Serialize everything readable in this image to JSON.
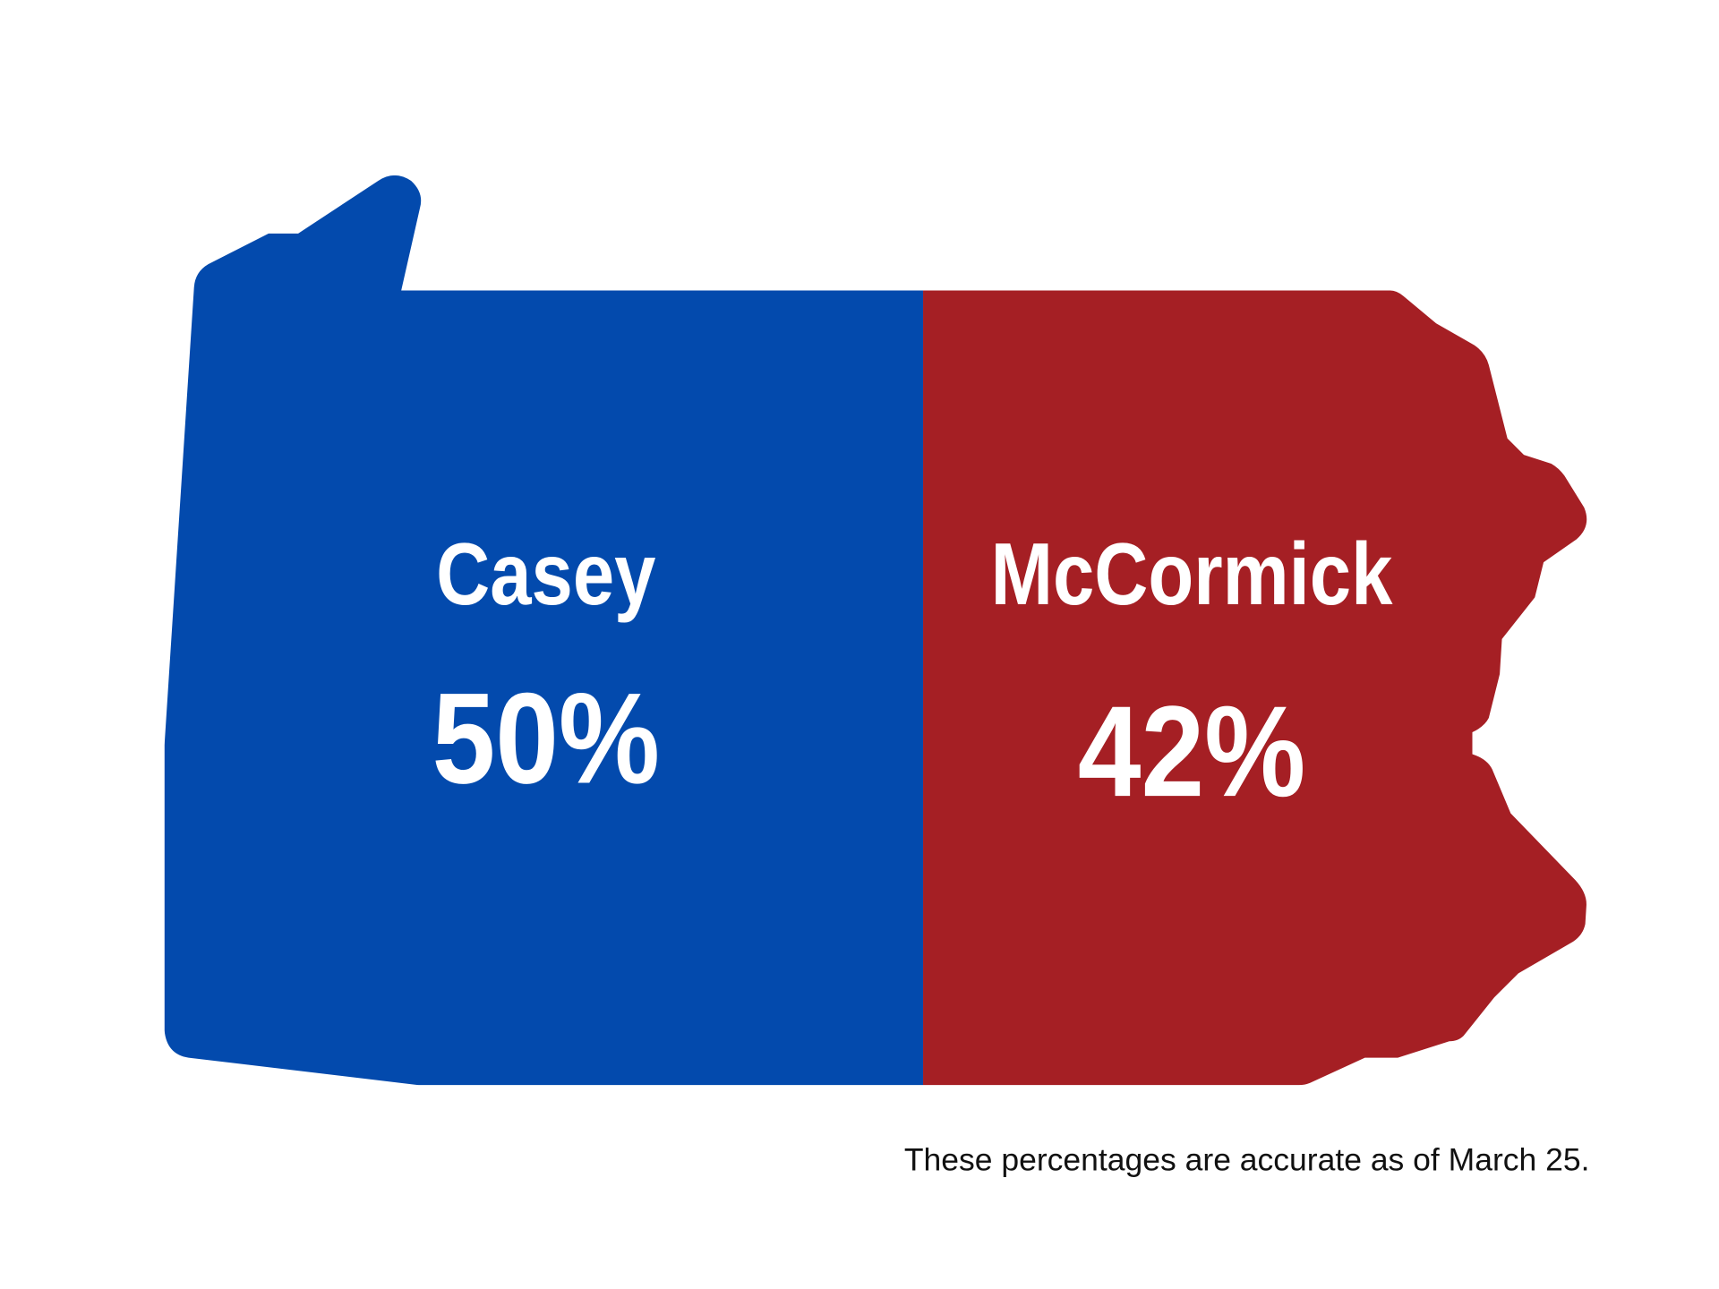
{
  "candidates": [
    {
      "name": "Casey",
      "share": "50%",
      "color": "#034aad"
    },
    {
      "name": "McCormick",
      "share": "42%",
      "color": "#a51f24"
    }
  ],
  "note": "These percentages are accurate as of March 25."
}
